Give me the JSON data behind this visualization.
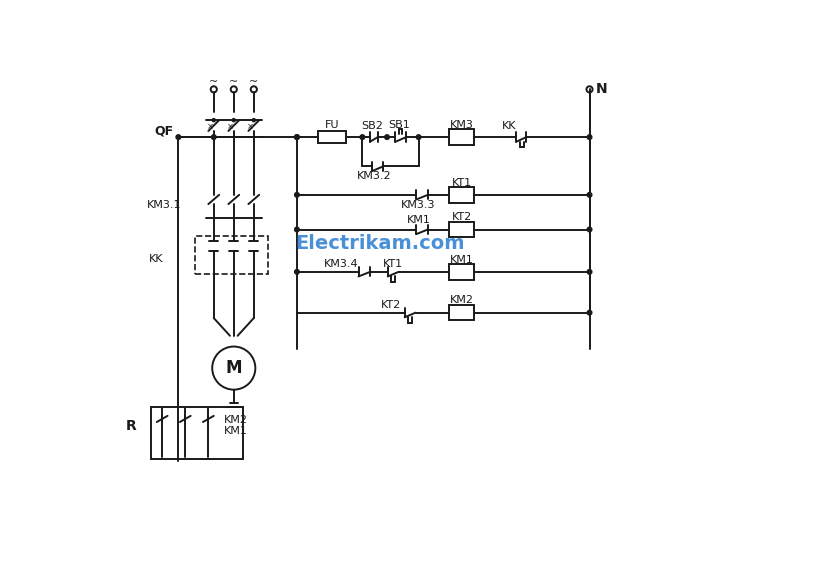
{
  "bg_color": "#ffffff",
  "line_color": "#1a1a1a",
  "watermark_color": "#4a90d9",
  "watermark_text": "Electrikam.com",
  "labels": {
    "N": "N",
    "QF": "QF",
    "FU": "FU",
    "SB2": "SB2",
    "SB1": "SB1",
    "KM3": "KM3",
    "KK": "KK",
    "KT1": "KT1",
    "KM3_2": "KM3.2",
    "KM3_3": "KM3.3",
    "KT2": "KT2",
    "KM1": "KM1",
    "KM3_4": "KM3.4",
    "KT1b": "KT1",
    "KM1b": "KM1",
    "KT2b": "KT2",
    "KM2": "KM2",
    "KM3_1": "KM3.1",
    "KK2": "KK",
    "R": "R",
    "KM2b": "KM2",
    "KM1c": "KM1",
    "M": "M",
    "tilde1": "~",
    "tilde2": "~",
    "tilde3": "~"
  }
}
